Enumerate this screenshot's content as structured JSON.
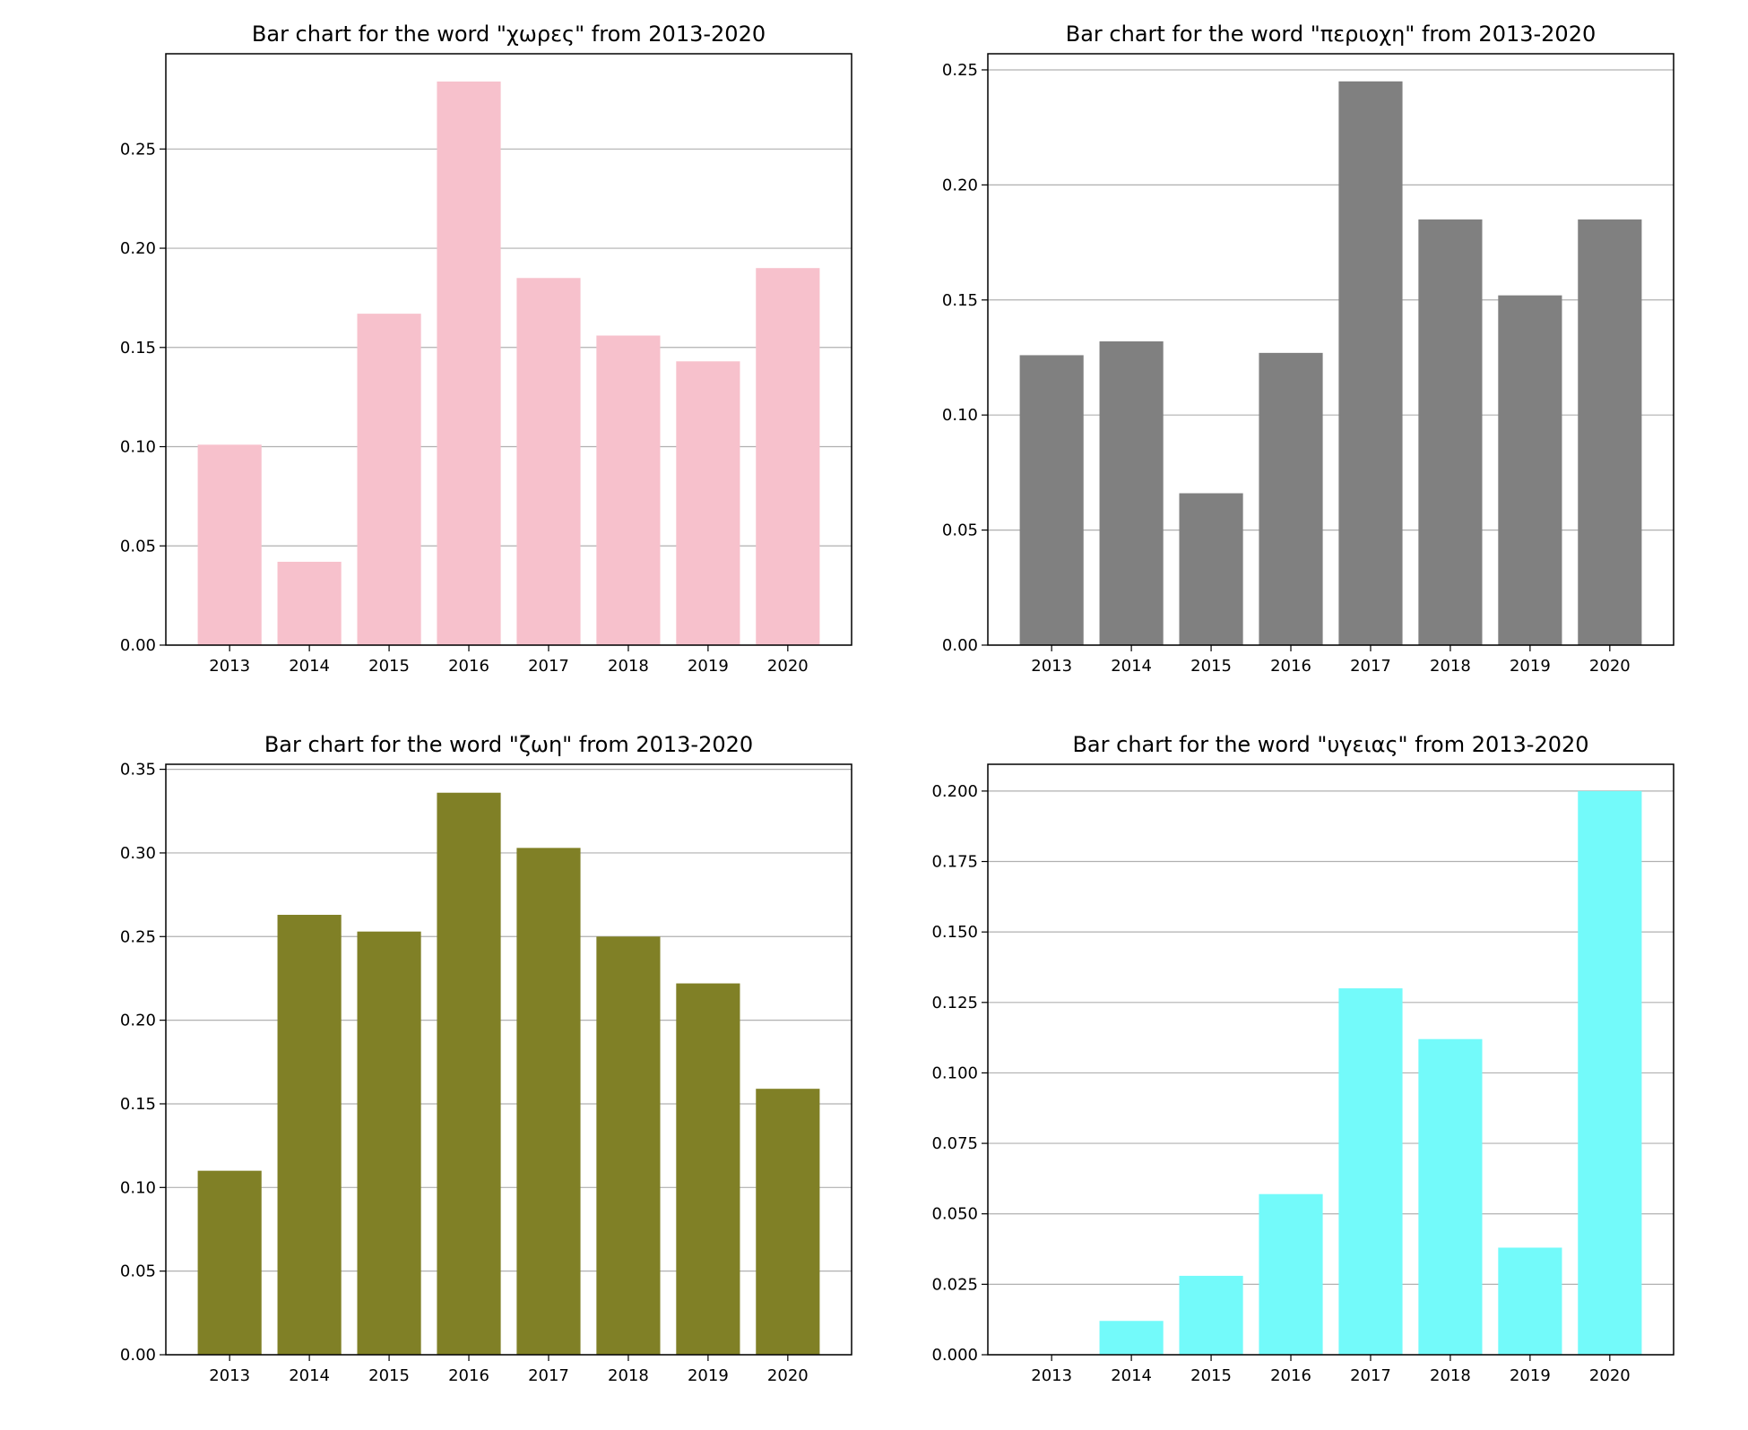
{
  "chart_data": [
    {
      "type": "bar",
      "title": "Bar chart for the word \"χωρες\" from 2013-2020",
      "categories": [
        "2013",
        "2014",
        "2015",
        "2016",
        "2017",
        "2018",
        "2019",
        "2020"
      ],
      "values": [
        0.101,
        0.042,
        0.167,
        0.284,
        0.185,
        0.156,
        0.143,
        0.19
      ],
      "color": "#f7c1cc",
      "ylim": [
        0,
        0.298
      ],
      "yticks": [
        0.0,
        0.05,
        0.1,
        0.15,
        0.2,
        0.25
      ],
      "ytick_labels": [
        "0.00",
        "0.05",
        "0.10",
        "0.15",
        "0.20",
        "0.25"
      ],
      "grid": "y",
      "xlabel": "",
      "ylabel": ""
    },
    {
      "type": "bar",
      "title": "Bar chart for the word \"περιοχη\" from 2013-2020",
      "categories": [
        "2013",
        "2014",
        "2015",
        "2016",
        "2017",
        "2018",
        "2019",
        "2020"
      ],
      "values": [
        0.126,
        0.132,
        0.066,
        0.127,
        0.245,
        0.185,
        0.152,
        0.185
      ],
      "color": "#808080",
      "ylim": [
        0,
        0.257
      ],
      "yticks": [
        0.0,
        0.05,
        0.1,
        0.15,
        0.2,
        0.25
      ],
      "ytick_labels": [
        "0.00",
        "0.05",
        "0.10",
        "0.15",
        "0.20",
        "0.25"
      ],
      "grid": "y",
      "xlabel": "",
      "ylabel": ""
    },
    {
      "type": "bar",
      "title": "Bar chart for the word \"ζωη\" from 2013-2020",
      "categories": [
        "2013",
        "2014",
        "2015",
        "2016",
        "2017",
        "2018",
        "2019",
        "2020"
      ],
      "values": [
        0.11,
        0.263,
        0.253,
        0.336,
        0.303,
        0.25,
        0.222,
        0.159
      ],
      "color": "#808026",
      "ylim": [
        0,
        0.353
      ],
      "yticks": [
        0.0,
        0.05,
        0.1,
        0.15,
        0.2,
        0.25,
        0.3,
        0.35
      ],
      "ytick_labels": [
        "0.00",
        "0.05",
        "0.10",
        "0.15",
        "0.20",
        "0.25",
        "0.30",
        "0.35"
      ],
      "grid": "y",
      "xlabel": "",
      "ylabel": ""
    },
    {
      "type": "bar",
      "title": "Bar chart for the word \"υγειας\" from 2013-2020",
      "categories": [
        "2013",
        "2014",
        "2015",
        "2016",
        "2017",
        "2018",
        "2019",
        "2020"
      ],
      "values": [
        0.0,
        0.012,
        0.028,
        0.057,
        0.13,
        0.112,
        0.038,
        0.2
      ],
      "color": "#73fafa",
      "ylim": [
        0,
        0.2095
      ],
      "yticks": [
        0.0,
        0.025,
        0.05,
        0.075,
        0.1,
        0.125,
        0.15,
        0.175,
        0.2
      ],
      "ytick_labels": [
        "0.000",
        "0.025",
        "0.050",
        "0.075",
        "0.100",
        "0.125",
        "0.150",
        "0.175",
        "0.200"
      ],
      "grid": "y",
      "xlabel": "",
      "ylabel": ""
    }
  ]
}
